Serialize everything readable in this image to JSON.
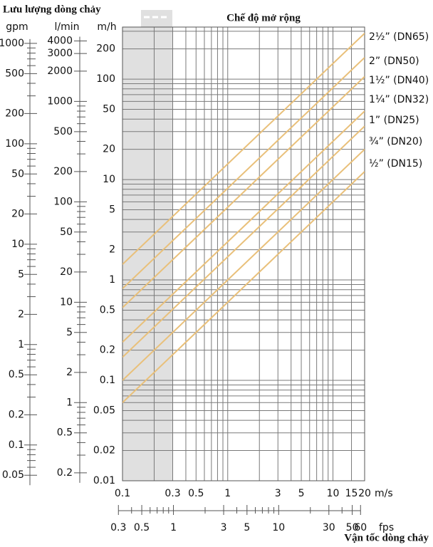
{
  "chart_data": {
    "type": "line",
    "title": "Lưu lượng dòng chảy",
    "xlabel": "Vận tốc dòng chảy",
    "log_x": true,
    "log_y": true,
    "grid": true,
    "x": [
      0.1,
      20
    ],
    "xlim": [
      0.1,
      20
    ],
    "xticks": [
      0.1,
      0.3,
      0.5,
      1,
      3,
      5,
      10,
      15,
      20
    ],
    "xgrid": [
      0.1,
      0.2,
      0.3,
      0.4,
      0.5,
      0.6,
      0.7,
      0.8,
      0.9,
      1,
      2,
      3,
      4,
      5,
      6,
      7,
      8,
      9,
      10,
      15,
      20
    ],
    "xunit": "m/s",
    "ylim": [
      0.01,
      330
    ],
    "yticks": [
      200,
      100,
      50,
      20,
      10,
      5,
      2,
      1,
      0.5,
      0.2,
      0.1,
      0.05,
      0.02,
      0.01
    ],
    "ygrid": [
      0.02,
      0.03,
      0.04,
      0.05,
      0.06,
      0.07,
      0.08,
      0.09,
      0.1,
      0.2,
      0.3,
      0.4,
      0.5,
      0.6,
      0.7,
      0.8,
      0.9,
      1,
      2,
      3,
      4,
      5,
      6,
      7,
      8,
      9,
      10,
      20,
      30,
      40,
      50,
      60,
      70,
      80,
      90,
      100,
      200,
      300
    ],
    "yunit": "m/h",
    "shaded": {
      "xlim": [
        0.1,
        0.3
      ],
      "color": "#e0e0e0",
      "label": "Chế độ mở rộng"
    },
    "series": [
      {
        "name": "2½” (DN65)",
        "color": "#e9c07a",
        "values": [
          1.43,
          286
        ]
      },
      {
        "name": "2” (DN50)",
        "color": "#e9c07a",
        "values": [
          0.82,
          164
        ]
      },
      {
        "name": "1½” (DN40)",
        "color": "#e9c07a",
        "values": [
          0.53,
          106
        ]
      },
      {
        "name": "1¼” (DN32)",
        "color": "#e9c07a",
        "values": [
          0.24,
          48
        ]
      },
      {
        "name": "1” (DN25)",
        "color": "#e9c07a",
        "values": [
          0.17,
          34
        ]
      },
      {
        "name": "¾” (DN20)",
        "color": "#e9c07a",
        "values": [
          0.1,
          20
        ]
      },
      {
        "name": "½” (DN15)",
        "color": "#e9c07a",
        "values": [
          0.06,
          12
        ]
      }
    ],
    "gpm_axis": {
      "unit": "gpm",
      "ylim": [
        0.04403,
        1453
      ],
      "ticks": [
        1000,
        500,
        200,
        100,
        50,
        20,
        10,
        5,
        2,
        1,
        0.5,
        0.2,
        0.1,
        0.05
      ],
      "minorticks": [
        0.06,
        0.07,
        0.08,
        0.09,
        0.3,
        0.4,
        0.6,
        0.7,
        0.8,
        0.9,
        3,
        4,
        6,
        7,
        8,
        9,
        30,
        40,
        60,
        70,
        80,
        90,
        300,
        400,
        600,
        700,
        800,
        900
      ]
    },
    "lmin_axis": {
      "unit": "l/min",
      "ylim": [
        0.1667,
        5500
      ],
      "ticks": [
        4000,
        3000,
        2000,
        1000,
        500,
        200,
        100,
        50,
        20,
        10,
        5,
        2,
        1,
        0.5,
        0.2
      ],
      "minorticks": [
        0.3,
        0.4,
        0.6,
        0.7,
        0.8,
        0.9,
        3,
        4,
        6,
        7,
        8,
        9,
        30,
        40,
        60,
        70,
        80,
        90,
        300,
        400,
        600,
        700,
        800,
        900
      ]
    },
    "fps_axis": {
      "unit": "fps",
      "xlim": [
        0.328,
        65.6
      ],
      "ticks": [
        0.3,
        0.5,
        1,
        3,
        5,
        10,
        30,
        50,
        60
      ],
      "minorticks": [
        0.4,
        0.6,
        0.7,
        0.8,
        0.9,
        2,
        4,
        6,
        7,
        8,
        9,
        20,
        40
      ]
    }
  }
}
